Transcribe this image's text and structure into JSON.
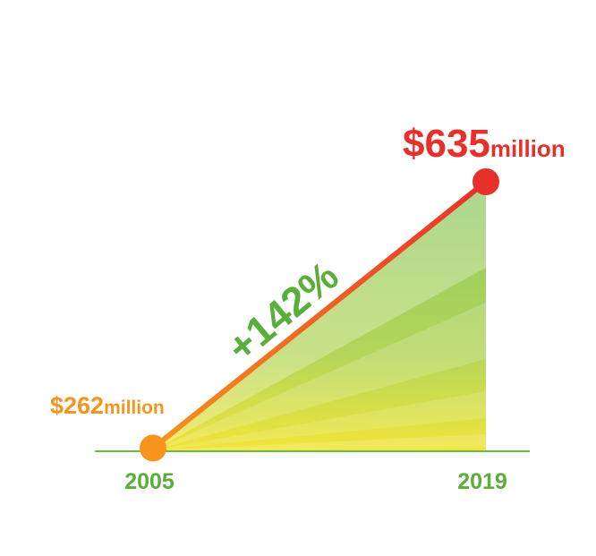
{
  "chart_data": {
    "type": "line",
    "categories": [
      "2005",
      "2019"
    ],
    "values": [
      262,
      635
    ],
    "value_labels": [
      "$262",
      "$635"
    ],
    "value_unit": "million",
    "annotation": "+142%",
    "colors": [
      "#f7941d",
      "#e8302a"
    ],
    "ylim": [
      250,
      650
    ]
  }
}
